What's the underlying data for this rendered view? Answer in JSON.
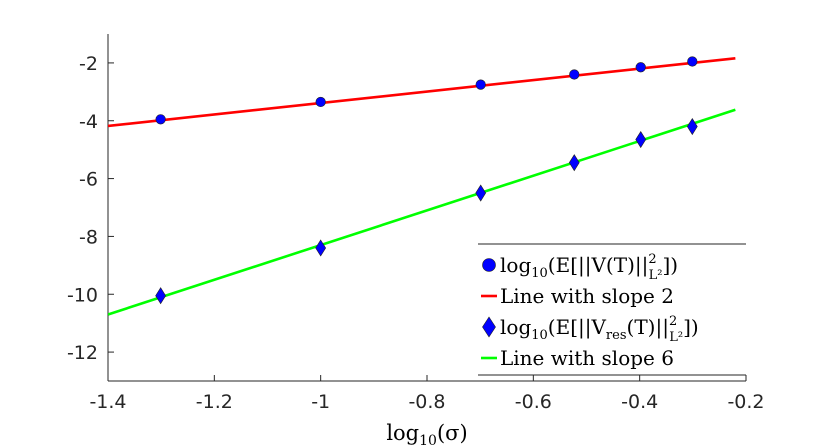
{
  "chart_data": {
    "type": "line",
    "title": "",
    "xlabel": "log10(σ)",
    "ylabel": "",
    "xlim": [
      -1.4,
      -0.2
    ],
    "ylim": [
      -13,
      -1
    ],
    "xticks": [
      -1.4,
      -1.2,
      -1,
      -0.8,
      -0.6,
      -0.4,
      -0.2
    ],
    "xtick_labels": [
      "-1.4",
      "-1.2",
      "-1",
      "-0.8",
      "-0.6",
      "-0.4",
      "-0.2"
    ],
    "yticks": [
      -12,
      -10,
      -8,
      -6,
      -4,
      -2
    ],
    "ytick_labels": [
      "-12",
      "-10",
      "-8",
      "-6",
      "-4",
      "-2"
    ],
    "grid": false,
    "legend_position": "bottom-right",
    "series": [
      {
        "name": "log10(E[||V(T)||²_L²])",
        "kind": "scatter",
        "marker": "circle",
        "color": "#0000ff",
        "x": [
          -1.301,
          -1.0,
          -0.699,
          -0.523,
          -0.398,
          -0.301
        ],
        "y": [
          -3.95,
          -3.35,
          -2.75,
          -2.4,
          -2.15,
          -1.95
        ]
      },
      {
        "name": "Line with slope 2",
        "kind": "line",
        "color": "#ff0000",
        "x": [
          -1.4,
          -0.22
        ],
        "y": [
          -4.18,
          -1.84
        ]
      },
      {
        "name": "log10(E[||Vres(T)||²_L²])",
        "kind": "scatter",
        "marker": "diamond",
        "color": "#0000ff",
        "x": [
          -1.301,
          -1.0,
          -0.699,
          -0.523,
          -0.398,
          -0.301
        ],
        "y": [
          -10.05,
          -8.4,
          -6.5,
          -5.45,
          -4.65,
          -4.2
        ]
      },
      {
        "name": "Line with slope 6",
        "kind": "line",
        "color": "#00ff00",
        "x": [
          -1.4,
          -0.22
        ],
        "y": [
          -10.7,
          -3.62
        ]
      }
    ],
    "legend": {
      "entries": [
        {
          "prefix": "log",
          "sub": "10",
          "main": "(E[||V(T)||",
          "sup": "2",
          "sub2": "L²",
          "suffix": "])"
        },
        {
          "text": "Line with slope 2"
        },
        {
          "prefix": "log",
          "sub": "10",
          "main": "(E[||V",
          "mainsub": "res",
          "main2": "(T)||",
          "sup": "2",
          "sub2": "L²",
          "suffix": "])"
        },
        {
          "text": "Line with slope 6"
        }
      ]
    },
    "xlabel_parts": {
      "prefix": "log",
      "sub": "10",
      "main": "(σ)"
    }
  }
}
